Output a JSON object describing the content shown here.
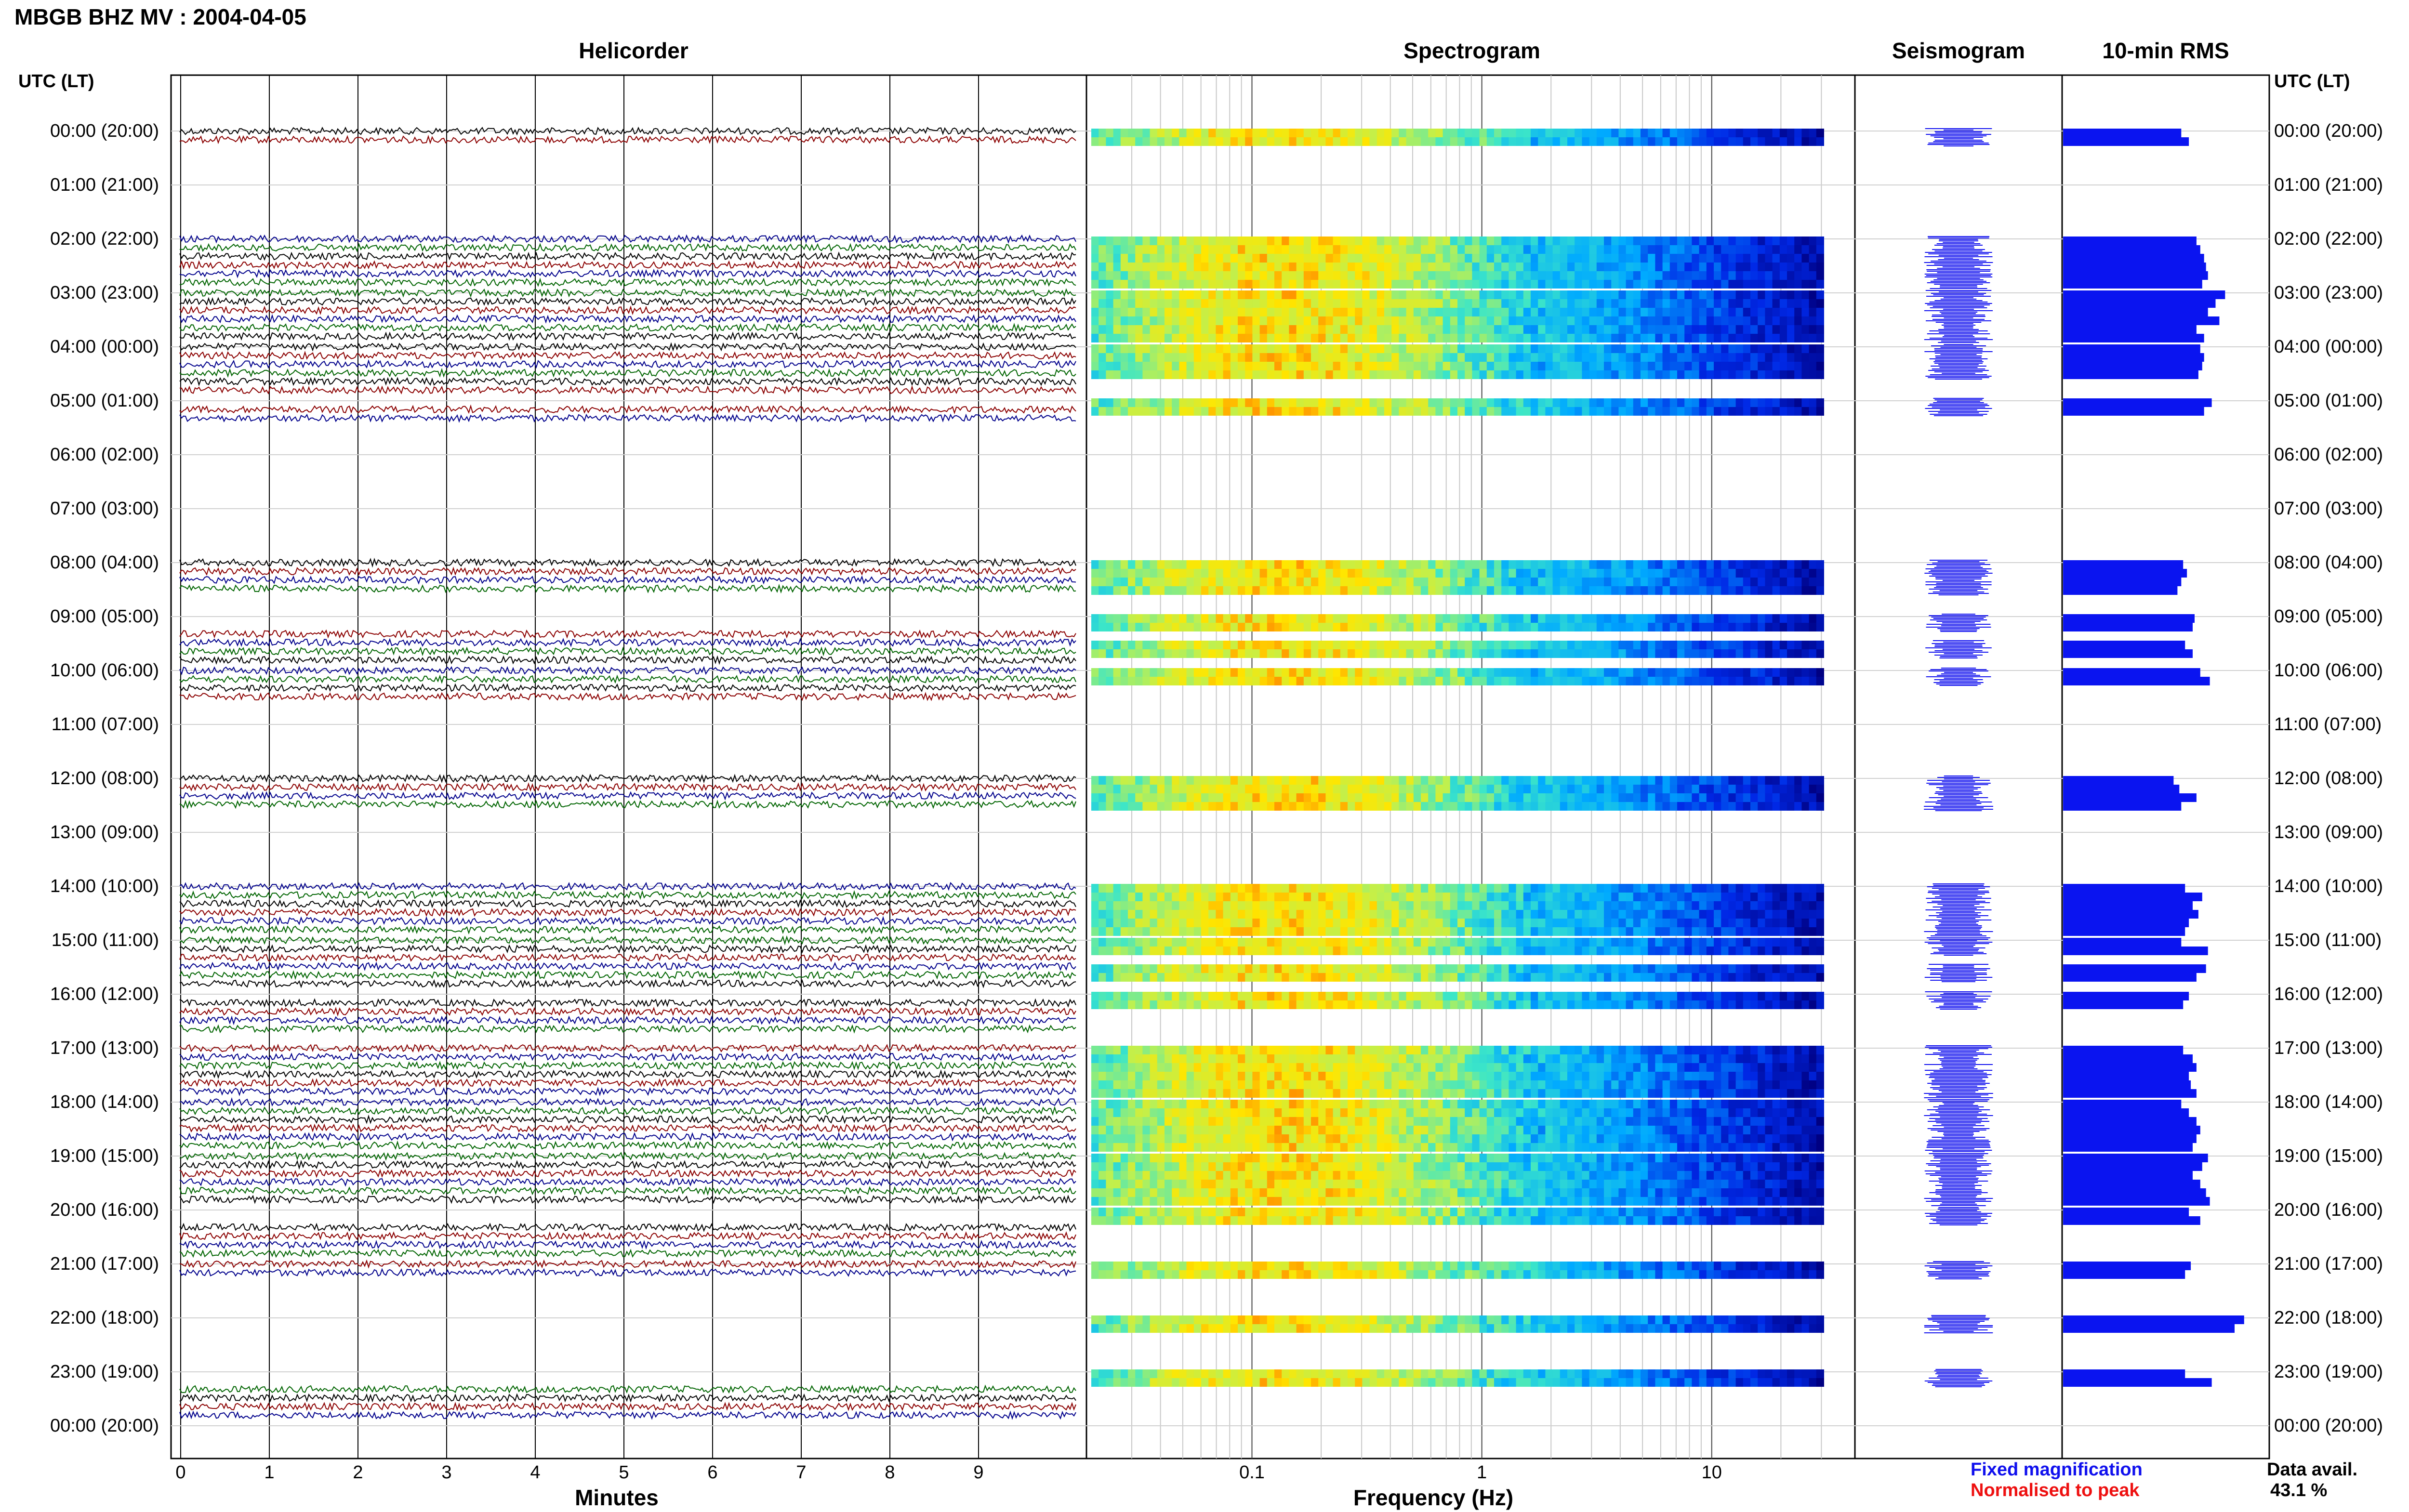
{
  "page": {
    "title": "MBGB BHZ MV : 2004-04-05",
    "utc_label_left": "UTC (LT)",
    "utc_label_right": "UTC (LT)"
  },
  "panels": {
    "helicorder": "Helicorder",
    "spectrogram": "Spectrogram",
    "seismogram": "Seismogram",
    "rms": "10-min RMS"
  },
  "axes": {
    "helicorder_xlabel": "Minutes",
    "spectrogram_xlabel": "Frequency (Hz)"
  },
  "legend": {
    "fixed": "Fixed magnification",
    "fixed_color": "#1010ee",
    "normalised": "Normalised to peak",
    "normalised_color": "#ee1010",
    "data_avail_label": "Data avail.",
    "data_avail_value": "43.1 %"
  },
  "chart_data": [
    {
      "type": "line",
      "name": "Helicorder",
      "xlabel": "Minutes",
      "x_ticks": [
        "0",
        "1",
        "2",
        "3",
        "4",
        "5",
        "6",
        "7",
        "8",
        "9"
      ],
      "xlim": [
        0,
        10
      ],
      "hour_labels": [
        "00:00 (20:00)",
        "01:00 (21:00)",
        "02:00 (22:00)",
        "03:00 (23:00)",
        "04:00 (00:00)",
        "05:00 (01:00)",
        "06:00 (02:00)",
        "07:00 (03:00)",
        "08:00 (04:00)",
        "09:00 (05:00)",
        "10:00 (06:00)",
        "11:00 (07:00)",
        "12:00 (08:00)",
        "13:00 (09:00)",
        "14:00 (10:00)",
        "15:00 (11:00)",
        "16:00 (12:00)",
        "17:00 (13:00)",
        "18:00 (14:00)",
        "19:00 (15:00)",
        "20:00 (16:00)",
        "21:00 (17:00)",
        "22:00 (18:00)",
        "23:00 (19:00)",
        "00:00 (20:00)"
      ],
      "trace_colors": [
        "#000000",
        "#8b0000",
        "#00008b",
        "#006400"
      ],
      "hour_trace_counts": [
        2,
        0,
        6,
        6,
        6,
        2,
        0,
        0,
        4,
        4,
        4,
        0,
        4,
        0,
        6,
        6,
        4,
        6,
        6,
        6,
        4,
        2,
        0,
        4
      ],
      "hour_offsets": [
        0,
        0,
        0,
        0,
        0,
        1,
        0,
        0,
        0,
        2,
        0,
        0,
        0,
        0,
        0,
        0,
        1,
        0,
        0,
        0,
        2,
        0,
        0,
        2
      ]
    },
    {
      "type": "heatmap",
      "name": "Spectrogram",
      "xlabel": "Frequency (Hz)",
      "x_scale": "log",
      "x_ticks": [
        "0.1",
        "1",
        "10"
      ],
      "xlim": [
        0.02,
        40
      ]
    },
    {
      "type": "bar",
      "name": "10-min RMS",
      "bar_color": "#0a14f0",
      "segments": [
        {
          "hour": 0,
          "values": [
            0.62,
            0.66
          ]
        },
        {
          "hour": 2,
          "values": [
            0.7,
            0.72,
            0.74,
            0.75,
            0.76,
            0.73
          ]
        },
        {
          "hour": 3,
          "values": [
            0.85,
            0.8,
            0.76,
            0.82,
            0.7,
            0.74
          ]
        },
        {
          "hour": 4,
          "values": [
            0.72,
            0.74,
            0.73,
            0.71
          ]
        },
        {
          "hour": 5,
          "values": [
            0.78,
            0.74
          ]
        },
        {
          "hour": 8,
          "values": [
            0.63,
            0.65,
            0.62,
            0.6
          ]
        },
        {
          "hour": 9,
          "values": [
            0.69,
            0.68
          ]
        },
        {
          "hour": 9,
          "values": [
            0.64,
            0.68
          ]
        },
        {
          "hour": 10,
          "values": [
            0.72,
            0.77
          ]
        },
        {
          "hour": 12,
          "values": [
            0.58,
            0.61,
            0.7,
            0.62
          ]
        },
        {
          "hour": 14,
          "values": [
            0.64,
            0.73,
            0.68,
            0.71,
            0.66,
            0.64
          ]
        },
        {
          "hour": 15,
          "values": [
            0.62,
            0.76
          ]
        },
        {
          "hour": 15,
          "values": [
            0.75,
            0.7
          ]
        },
        {
          "hour": 16,
          "values": [
            0.66,
            0.63
          ]
        },
        {
          "hour": 17,
          "values": [
            0.63,
            0.68,
            0.7,
            0.66,
            0.67,
            0.7
          ]
        },
        {
          "hour": 18,
          "values": [
            0.62,
            0.66,
            0.7,
            0.72,
            0.7,
            0.68
          ]
        },
        {
          "hour": 19,
          "values": [
            0.76,
            0.73,
            0.68,
            0.72,
            0.75,
            0.77
          ]
        },
        {
          "hour": 20,
          "values": [
            0.66,
            0.72
          ]
        },
        {
          "hour": 21,
          "values": [
            0.67,
            0.64
          ]
        },
        {
          "hour": 22,
          "values": [
            0.95,
            0.9
          ]
        },
        {
          "hour": 23,
          "values": [
            0.64,
            0.78
          ]
        }
      ]
    }
  ]
}
